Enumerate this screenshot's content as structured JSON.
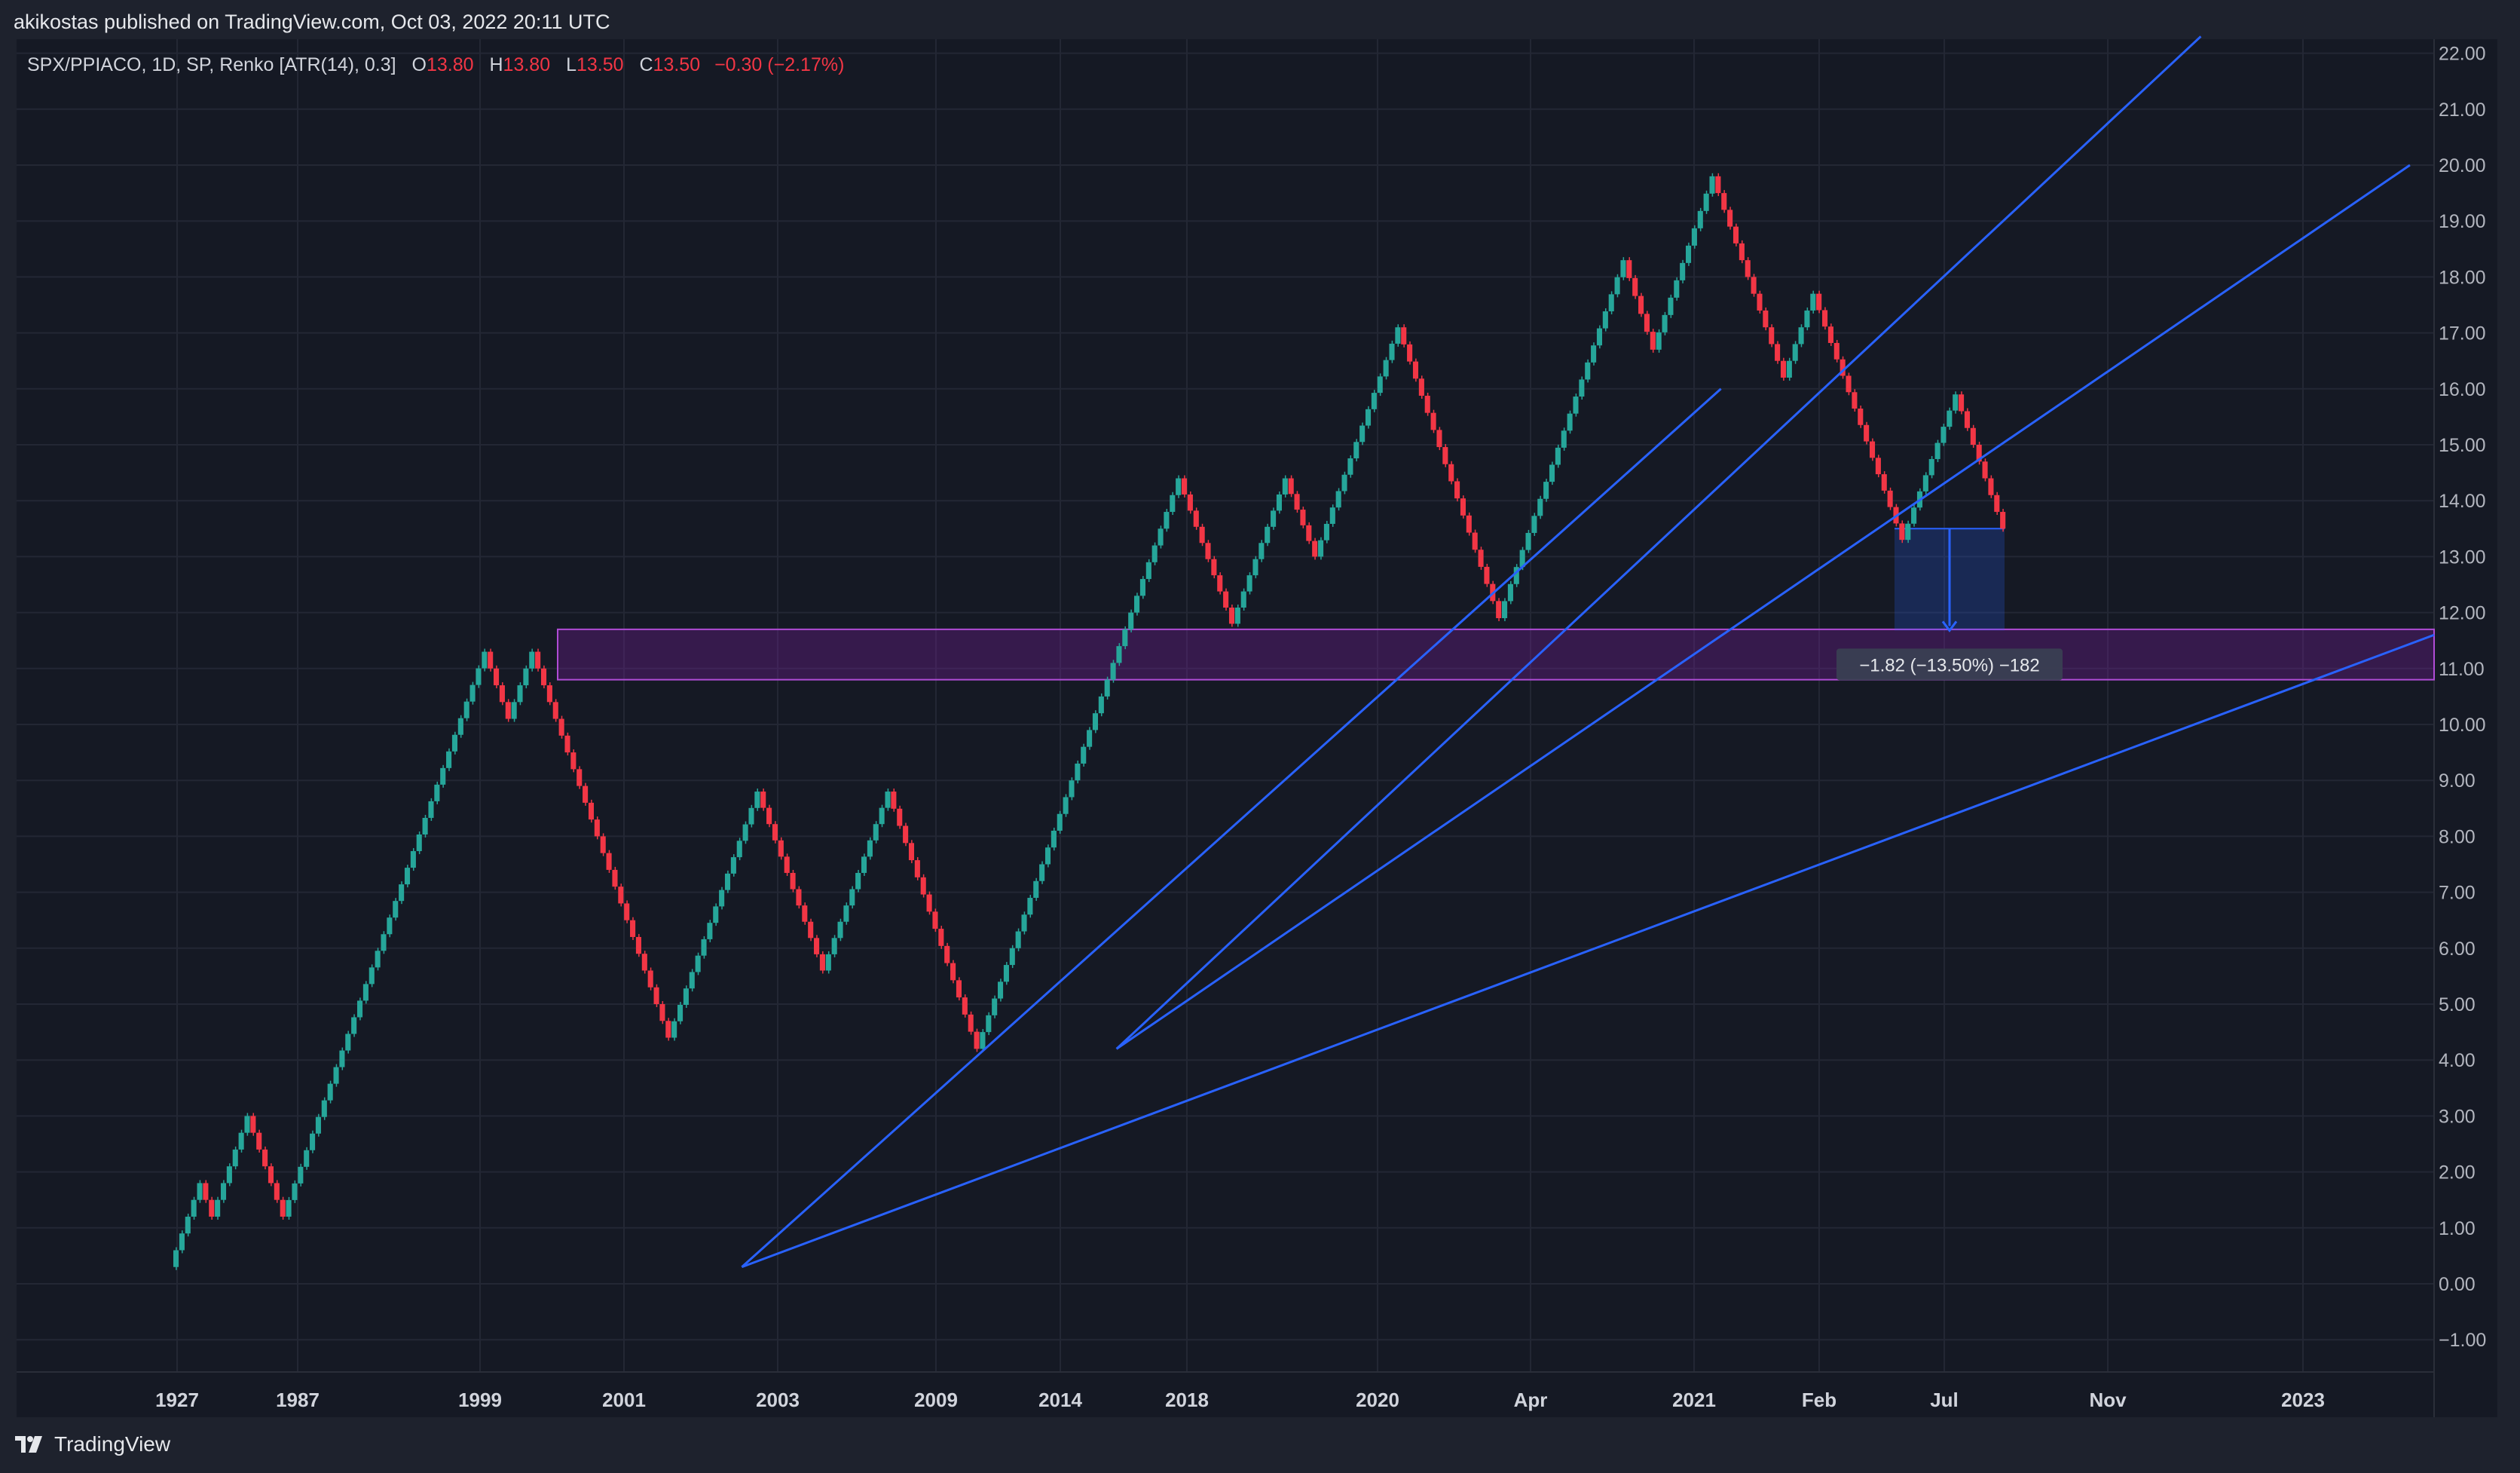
{
  "header": {
    "published": "akikostas published on TradingView.com, Oct 03, 2022 20:11 UTC"
  },
  "legend": {
    "symbol": "SPX/PPIACO, 1D, SP, Renko [ATR(14), 0.3]",
    "o_label": "O",
    "o_value": "13.80",
    "h_label": "H",
    "h_value": "13.80",
    "l_label": "L",
    "l_value": "13.50",
    "c_label": "C",
    "c_value": "13.50",
    "change": "−0.30 (−2.17%)"
  },
  "measure": {
    "label": "−1.82 (−13.50%) −182"
  },
  "brand": {
    "name": "TradingView",
    "icon": "tradingview-logo-icon"
  },
  "colors": {
    "background": "#151924",
    "up": "#26a69a",
    "down": "#f23645",
    "trendline": "#2962ff",
    "zone_fill": "#7b1fa2",
    "zone_border": "#b04cd6",
    "measure": "#2962ff"
  },
  "chart_data": {
    "type": "renko",
    "title": "",
    "brick_size": 0.3,
    "ylim": [
      -1.5,
      22.3
    ],
    "y_ticks": [
      "22.00",
      "21.00",
      "20.00",
      "19.00",
      "18.00",
      "17.00",
      "16.00",
      "15.00",
      "14.00",
      "13.00",
      "12.00",
      "11.00",
      "10.00",
      "9.00",
      "8.00",
      "7.00",
      "6.00",
      "5.00",
      "4.00",
      "3.00",
      "2.00",
      "1.00",
      "0.00",
      "−1.00"
    ],
    "x_tick_labels": [
      "1927",
      "1987",
      "1999",
      "2001",
      "2003",
      "2009",
      "2014",
      "2018",
      "2020",
      "Apr",
      "2021",
      "Feb",
      "Jul",
      "Nov",
      "2023"
    ],
    "brick_path": [
      0.3,
      1.8,
      1.2,
      3.0,
      1.2,
      11.3,
      10.1,
      11.3,
      4.4,
      8.8,
      5.6,
      8.8,
      4.2,
      14.4,
      11.8,
      14.4,
      13.0,
      17.1,
      11.9,
      18.3,
      16.7,
      19.8,
      16.2,
      17.7,
      13.3,
      15.9,
      13.5
    ],
    "support_zone": {
      "top": 11.7,
      "bottom": 10.8
    },
    "measurement": {
      "from": 13.5,
      "to": 11.68,
      "change": -1.82,
      "percent": -13.5
    },
    "trendlines": [
      {
        "from": [
          0.3,
          0.3
        ],
        "to": [
          1.0,
          11.6
        ]
      },
      {
        "from": [
          0.3,
          0.3
        ],
        "to": [
          0.705,
          16.0
        ]
      },
      {
        "from": [
          0.455,
          4.2
        ],
        "to": [
          0.9035,
          22.3
        ]
      },
      {
        "from": [
          0.455,
          4.2
        ],
        "to": [
          0.99,
          20.0
        ]
      }
    ]
  }
}
